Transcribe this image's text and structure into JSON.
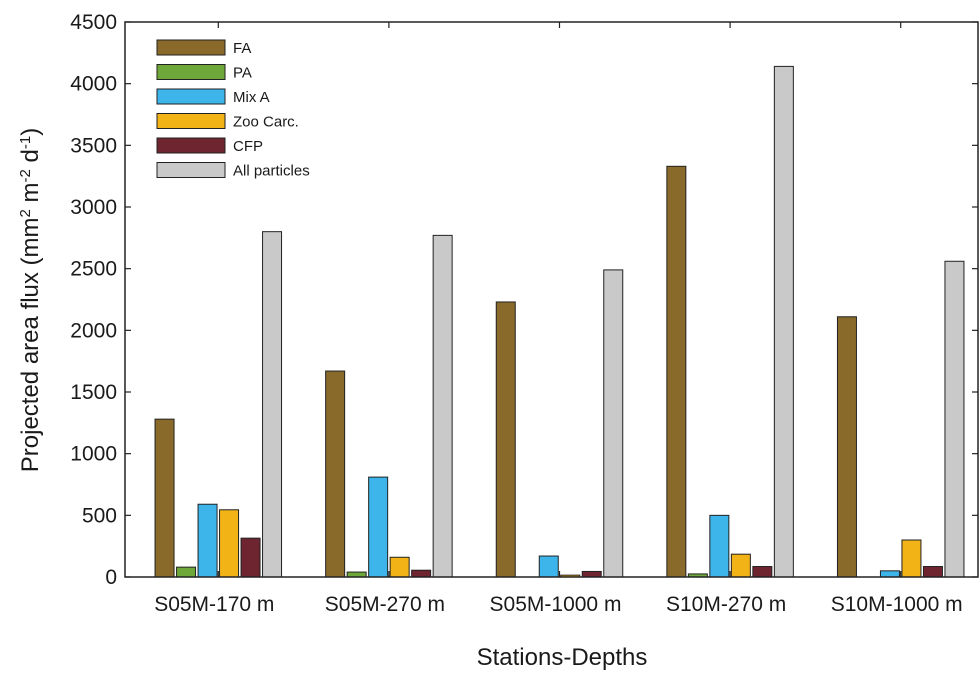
{
  "chart_data": {
    "type": "bar",
    "xlabel": "Stations-Depths",
    "ylabel_parts": [
      "Projected area flux (mm",
      "2",
      " m",
      "-2",
      " d",
      "-1",
      ")"
    ],
    "ylim": [
      0,
      4500
    ],
    "yticks": [
      0,
      500,
      1000,
      1500,
      2000,
      2500,
      3000,
      3500,
      4000,
      4500
    ],
    "ytick_labels": [
      "0",
      "500",
      "1000",
      "1500",
      "2000",
      "2500",
      "3000",
      "3500",
      "4000",
      "4500"
    ],
    "categories": [
      "S05M-170 m",
      "S05M-270 m",
      "S05M-1000 m",
      "S10M-270 m",
      "S10M-1000 m"
    ],
    "legend_position": "top-left",
    "grid": false,
    "series": [
      {
        "name": "FA",
        "color": "#8a6a2a",
        "values": [
          1280,
          1670,
          2230,
          3330,
          2110
        ]
      },
      {
        "name": "PA",
        "color": "#6fa83a",
        "values": [
          80,
          40,
          0,
          25,
          0
        ]
      },
      {
        "name": "Mix A",
        "color": "#3db5ea",
        "values": [
          590,
          810,
          170,
          500,
          50
        ]
      },
      {
        "name": "Zoo Carc.",
        "color": "#f2b316",
        "values": [
          545,
          160,
          15,
          185,
          300
        ]
      },
      {
        "name": "CFP",
        "color": "#6e2530",
        "values": [
          315,
          55,
          45,
          85,
          85
        ]
      },
      {
        "name": "All particles",
        "color": "#c9c9c9",
        "values": [
          2800,
          2770,
          2490,
          4140,
          2560
        ]
      }
    ]
  }
}
